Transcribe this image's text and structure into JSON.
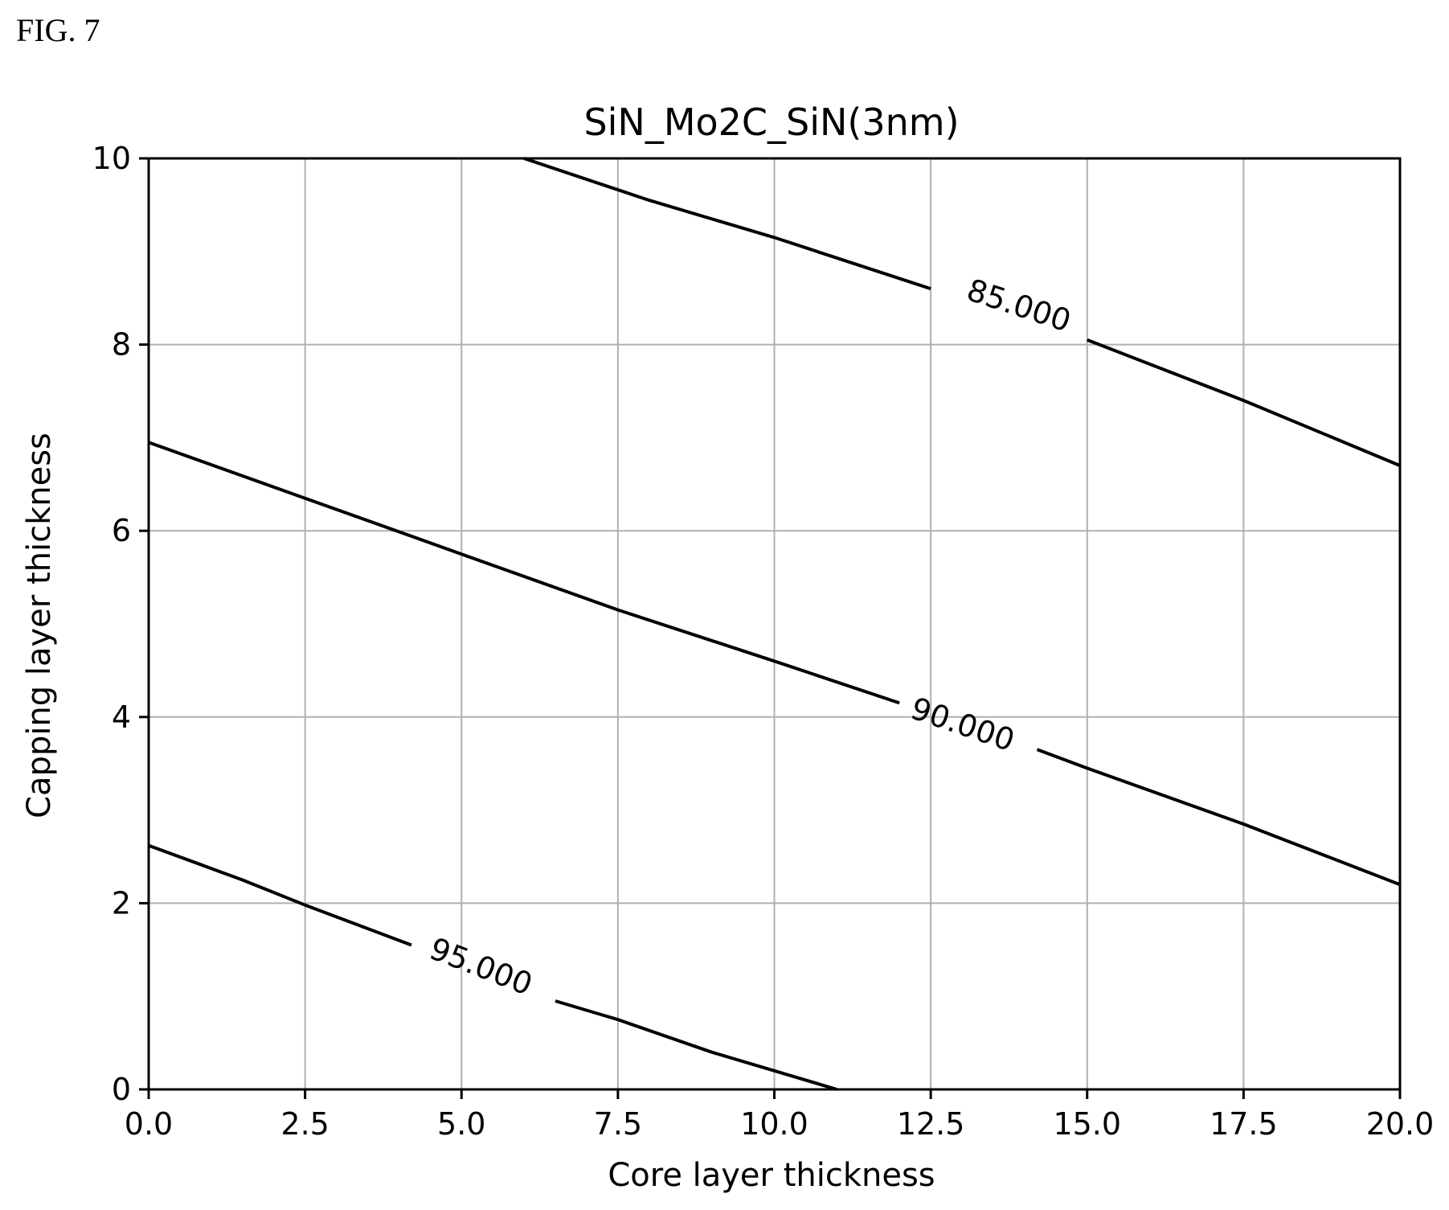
{
  "figure_label": "FIG. 7",
  "chart_data": {
    "type": "contour",
    "title": "SiN_Mo2C_SiN(3nm)",
    "xlabel": "Core layer thickness",
    "ylabel": "Capping layer thickness",
    "xlim": [
      0,
      20
    ],
    "ylim": [
      0,
      10
    ],
    "xticks": [
      0,
      2.5,
      5,
      7.5,
      10,
      12.5,
      15,
      17.5,
      20
    ],
    "xtick_labels": [
      "0.0",
      "2.5",
      "5.0",
      "7.5",
      "10.0",
      "12.5",
      "15.0",
      "17.5",
      "20.0"
    ],
    "yticks": [
      0,
      2,
      4,
      6,
      8,
      10
    ],
    "ytick_labels": [
      "0",
      "2",
      "4",
      "6",
      "8",
      "10"
    ],
    "grid": true,
    "line_color": "#000000",
    "grid_color": "#b0b0b0",
    "contours": [
      {
        "level": 85,
        "label": "85.000",
        "label_at": [
          13.9,
          8.4
        ],
        "segments": [
          [
            [
              6.0,
              10.0
            ],
            [
              8.0,
              9.55
            ],
            [
              10.0,
              9.15
            ],
            [
              12.5,
              8.6
            ]
          ],
          [
            [
              15.0,
              8.05
            ],
            [
              17.5,
              7.4
            ],
            [
              20.0,
              6.7
            ]
          ]
        ]
      },
      {
        "level": 90,
        "label": "90.000",
        "label_at": [
          13.0,
          3.9
        ],
        "segments": [
          [
            [
              0.0,
              6.95
            ],
            [
              2.5,
              6.35
            ],
            [
              5.0,
              5.75
            ],
            [
              7.5,
              5.15
            ],
            [
              10.0,
              4.6
            ],
            [
              12.0,
              4.15
            ]
          ],
          [
            [
              14.2,
              3.65
            ],
            [
              15.0,
              3.45
            ],
            [
              17.5,
              2.85
            ],
            [
              20.0,
              2.2
            ]
          ]
        ]
      },
      {
        "level": 95,
        "label": "95.000",
        "label_at": [
          5.3,
          1.3
        ],
        "segments": [
          [
            [
              0.0,
              2.62
            ],
            [
              1.5,
              2.25
            ],
            [
              2.5,
              1.98
            ],
            [
              4.2,
              1.55
            ]
          ],
          [
            [
              6.5,
              0.95
            ],
            [
              7.5,
              0.75
            ],
            [
              9.0,
              0.4
            ],
            [
              11.0,
              0.0
            ]
          ]
        ]
      }
    ]
  }
}
